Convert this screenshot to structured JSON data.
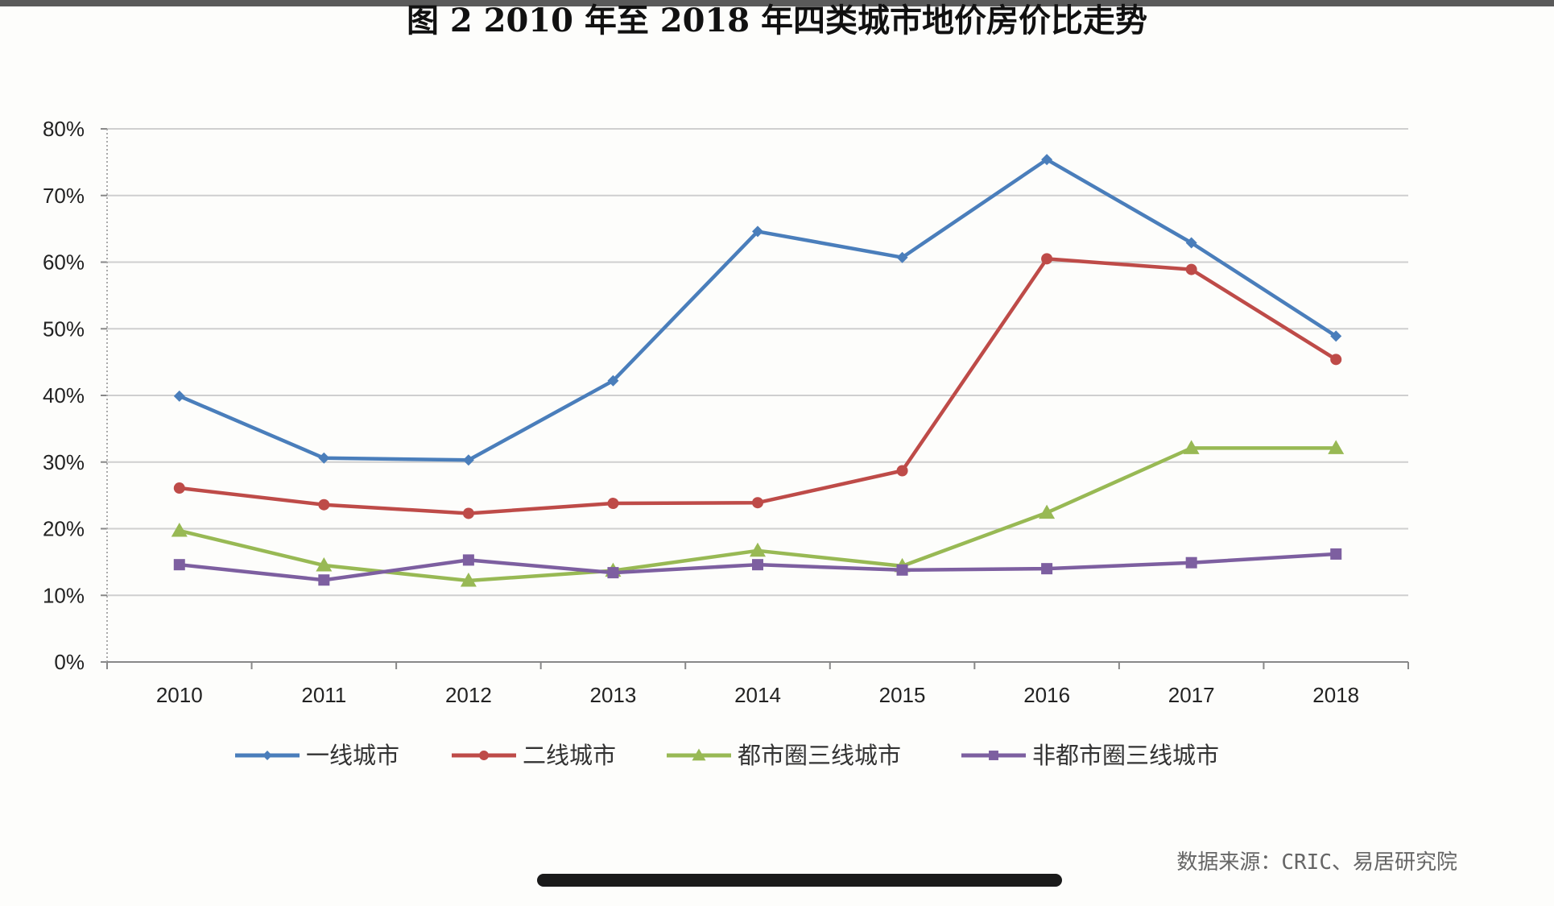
{
  "title": "图 2   2010 年至 2018 年四类城市地价房价比走势",
  "source": "数据来源：CRIC、易居研究院",
  "chart_data": {
    "type": "line",
    "categories": [
      "2010",
      "2011",
      "2012",
      "2013",
      "2014",
      "2015",
      "2016",
      "2017",
      "2018"
    ],
    "ylim": [
      0,
      80
    ],
    "yticks": [
      "0%",
      "10%",
      "20%",
      "30%",
      "40%",
      "50%",
      "60%",
      "70%",
      "80%"
    ],
    "grid": true,
    "legend_position": "bottom",
    "series": [
      {
        "name": "一线城市",
        "color": "#4a7ebb",
        "marker": "diamond",
        "values": [
          39.9,
          30.6,
          30.3,
          42.2,
          64.6,
          60.7,
          75.4,
          62.9,
          48.9
        ]
      },
      {
        "name": "二线城市",
        "color": "#be4b48",
        "marker": "circle",
        "values": [
          26.1,
          23.6,
          22.3,
          23.8,
          23.9,
          28.7,
          60.5,
          58.9,
          45.4
        ]
      },
      {
        "name": "都市圈三线城市",
        "color": "#98b954",
        "marker": "triangle",
        "values": [
          19.7,
          14.5,
          12.2,
          13.7,
          16.7,
          14.4,
          22.4,
          32.1,
          32.1
        ]
      },
      {
        "name": "非都市圈三线城市",
        "color": "#7d5fa0",
        "marker": "square",
        "values": [
          14.6,
          12.3,
          15.3,
          13.4,
          14.6,
          13.8,
          14.0,
          14.9,
          16.2
        ]
      }
    ]
  }
}
